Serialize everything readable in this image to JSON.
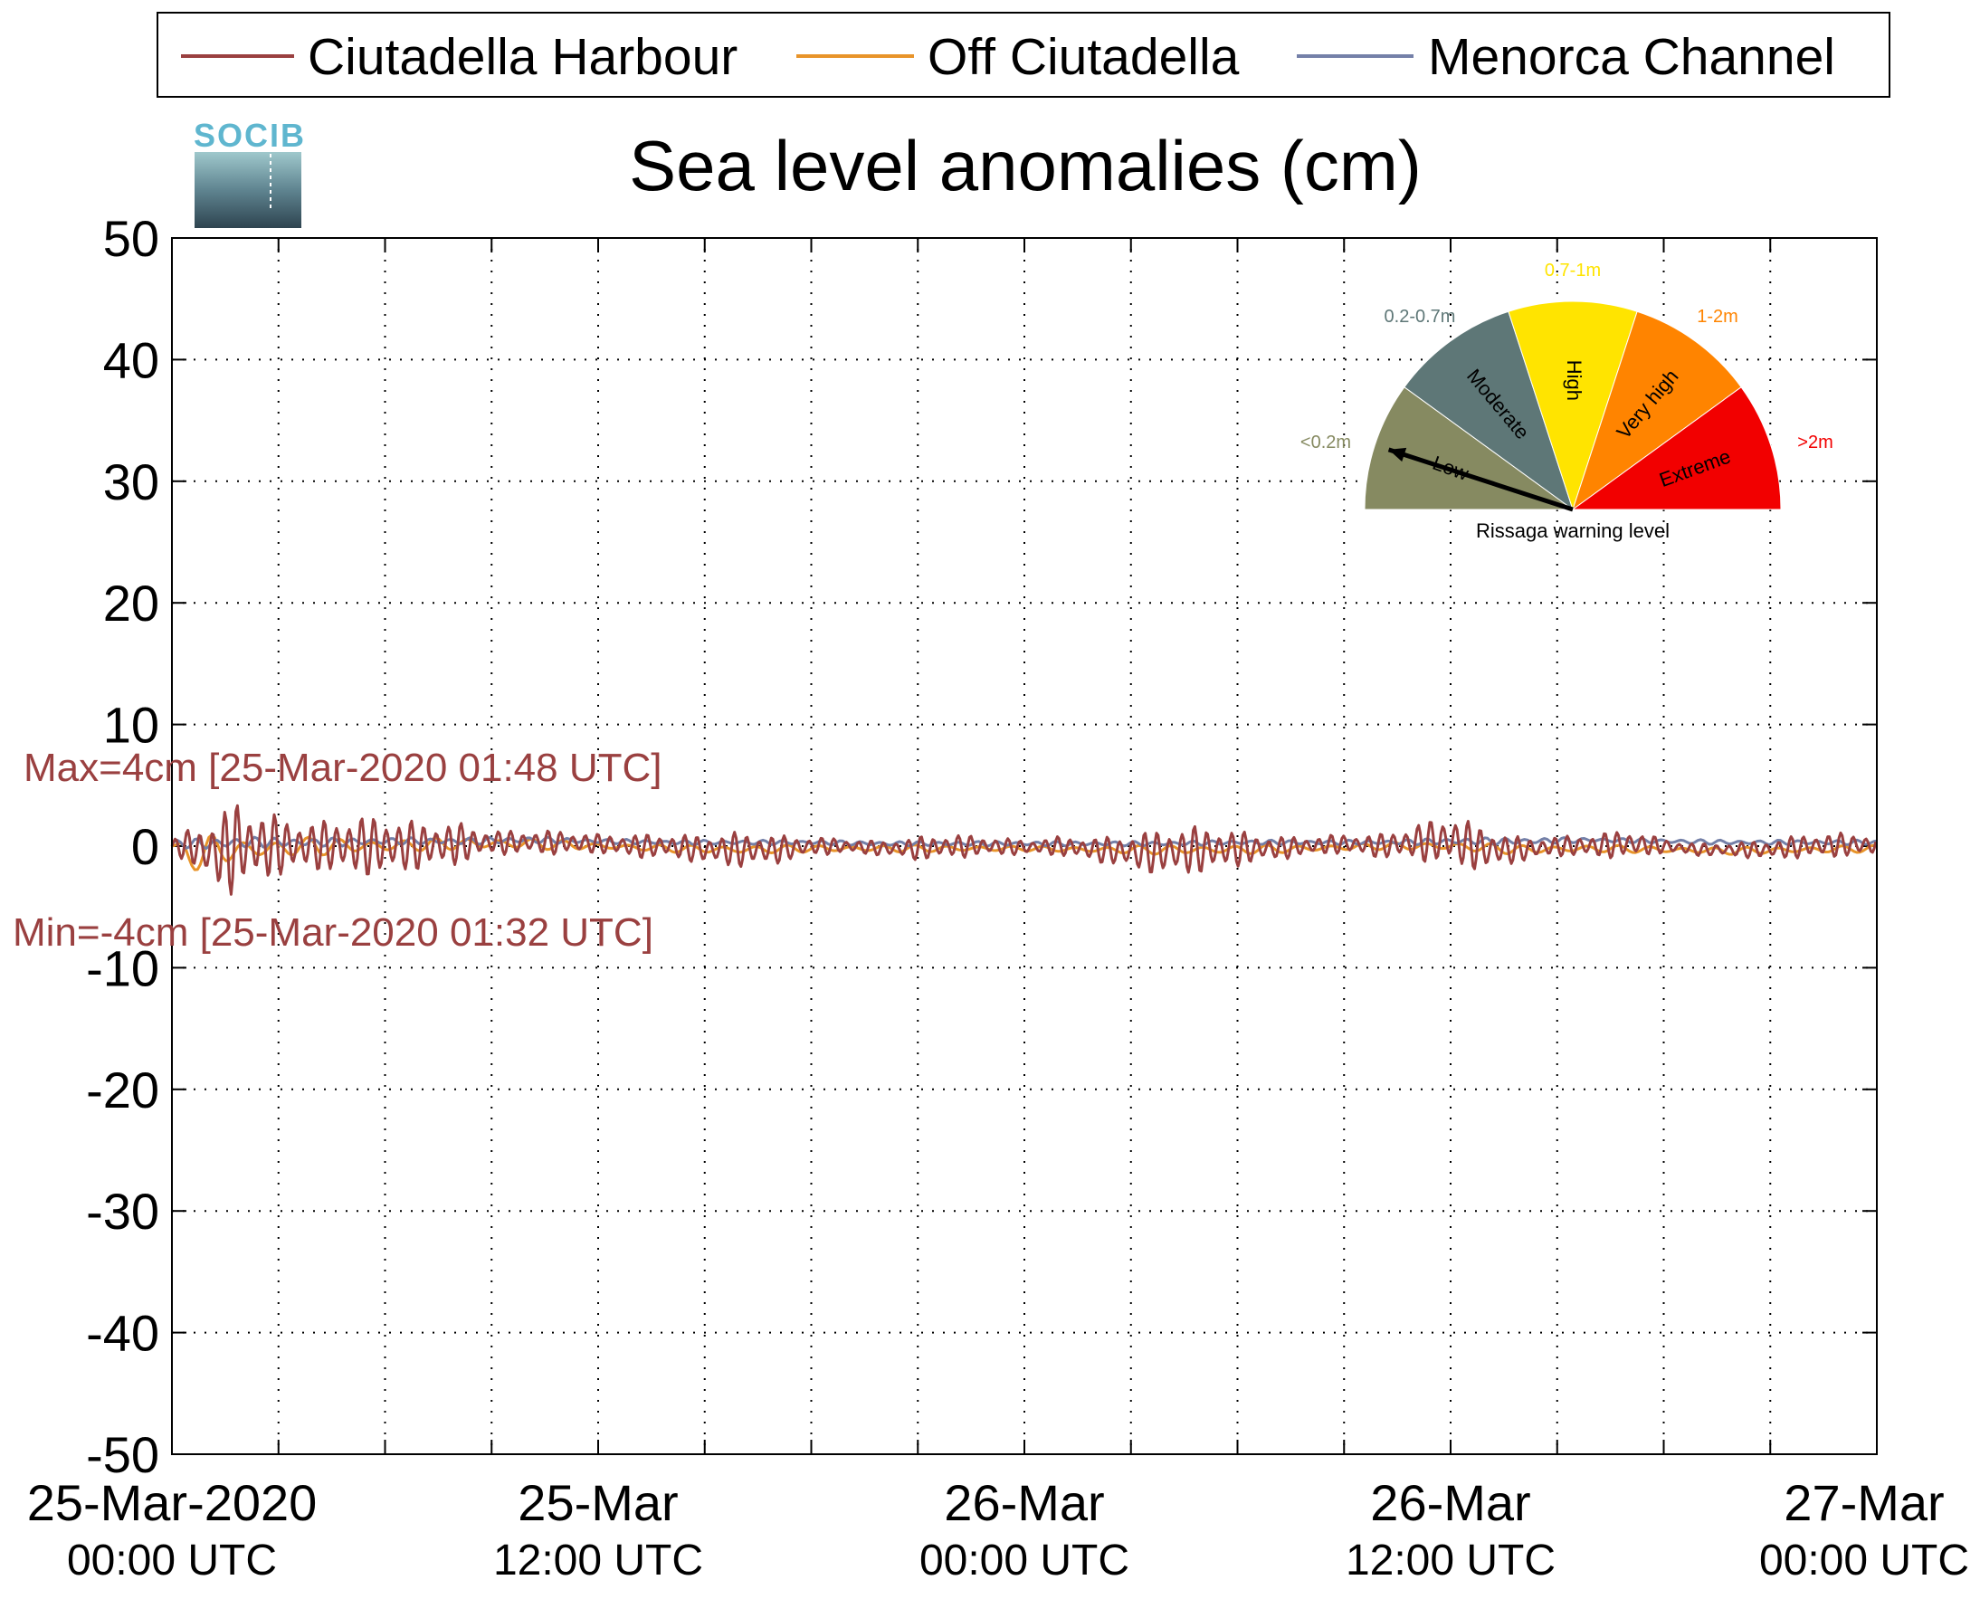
{
  "legend": {
    "items": [
      {
        "label": "Ciutadella Harbour",
        "color": "#9A4040"
      },
      {
        "label": "Off Ciutadella",
        "color": "#E8942A"
      },
      {
        "label": "Menorca Channel",
        "color": "#7480A8"
      }
    ]
  },
  "logo": {
    "text": "SOCIB"
  },
  "gauge": {
    "caption": "Rissaga warning level",
    "needle_level": "Low",
    "levels": [
      {
        "name": "Low",
        "range": "<0.2m",
        "color": "#868A61"
      },
      {
        "name": "Moderate",
        "range": "0.2-0.7m",
        "color": "#5E7777"
      },
      {
        "name": "High",
        "range": "0.7-1m",
        "color": "#FFE400"
      },
      {
        "name": "Very high",
        "range": "1-2m",
        "color": "#FF8400"
      },
      {
        "name": "Extreme",
        "range": ">2m",
        "color": "#F20000"
      }
    ]
  },
  "annotations": {
    "max": "Max=4cm [25-Mar-2020 01:48 UTC]",
    "min": "Min=-4cm [25-Mar-2020 01:32 UTC]",
    "color": "#9A4040"
  },
  "chart_data": {
    "type": "line",
    "title": "Sea level anomalies (cm)",
    "xlabel": "",
    "ylabel": "",
    "ylim": [
      -50,
      50
    ],
    "yticks": [
      -50,
      -40,
      -30,
      -20,
      -10,
      0,
      10,
      20,
      30,
      40,
      50
    ],
    "xlim_hours": [
      0,
      48
    ],
    "x_major_ticks": [
      {
        "hour": 0,
        "date": "25-Mar-2020",
        "time": "00:00 UTC"
      },
      {
        "hour": 12,
        "date": "25-Mar",
        "time": "12:00 UTC"
      },
      {
        "hour": 24,
        "date": "26-Mar",
        "time": "00:00 UTC"
      },
      {
        "hour": 36,
        "date": "26-Mar",
        "time": "12:00 UTC"
      },
      {
        "hour": 48,
        "date": "27-Mar",
        "time": "00:00 UTC"
      }
    ],
    "x_minor_tick_step_hours": 3,
    "grid": true,
    "legend_position": "top",
    "series": [
      {
        "name": "Ciutadella Harbour",
        "color": "#9A4040",
        "hours": [
          0,
          0.5,
          1,
          1.5,
          1.8,
          2,
          2.5,
          3,
          4,
          5,
          6,
          7,
          8,
          9,
          10,
          11,
          12,
          13,
          14,
          15,
          16,
          17,
          18,
          19,
          20,
          21,
          22,
          23,
          24,
          25,
          26,
          27,
          28,
          29,
          30,
          31,
          32,
          33,
          34,
          35,
          36,
          37,
          38,
          39,
          40,
          41,
          42,
          43,
          44,
          45,
          46,
          47,
          48
        ],
        "amplitude": [
          0.5,
          1.5,
          2.5,
          3.5,
          4.0,
          3.5,
          3.0,
          2.5,
          2.0,
          2.5,
          2.5,
          2.0,
          1.8,
          1.0,
          1.0,
          1.0,
          0.8,
          1.0,
          1.0,
          1.2,
          1.5,
          1.2,
          0.8,
          0.6,
          0.6,
          1.0,
          1.0,
          0.8,
          0.6,
          0.8,
          1.0,
          1.5,
          2.0,
          2.0,
          1.5,
          1.0,
          0.8,
          0.8,
          1.0,
          1.5,
          2.2,
          1.8,
          1.0,
          0.8,
          1.0,
          1.2,
          0.6,
          0.5,
          0.6,
          0.8,
          1.0,
          1.0,
          0.9
        ],
        "offset": [
          0,
          0,
          -0.5,
          -0.5,
          0,
          0,
          0,
          0,
          0,
          0,
          0,
          0,
          0.2,
          0.3,
          0.3,
          0.3,
          0.2,
          0,
          0,
          -0.3,
          -0.3,
          -0.3,
          0,
          0,
          -0.2,
          -0.2,
          0,
          0,
          -0.1,
          0,
          -0.3,
          -0.5,
          -0.5,
          -0.3,
          -0.2,
          -0.2,
          0,
          0.2,
          0,
          0.3,
          0.5,
          -0.3,
          -0.3,
          0,
          0,
          0.2,
          0,
          -0.3,
          -0.3,
          -0.3,
          0,
          0.1,
          0.1
        ]
      },
      {
        "name": "Off Ciutadella",
        "color": "#E8942A",
        "hours": [
          0,
          0.5,
          1,
          1.5,
          2,
          3,
          4,
          5,
          6,
          8,
          10,
          12,
          14,
          16,
          18,
          20,
          22,
          24,
          26,
          28,
          30,
          32,
          34,
          36,
          38,
          40,
          42,
          44,
          46,
          48
        ],
        "amplitude": [
          0.3,
          1.2,
          1.5,
          1.2,
          1.0,
          0.8,
          0.8,
          0.6,
          0.6,
          0.5,
          0.5,
          0.3,
          0.3,
          0.4,
          0.3,
          0.3,
          0.3,
          0.2,
          0.3,
          0.4,
          0.4,
          0.3,
          0.3,
          0.4,
          0.4,
          0.3,
          0.3,
          0.3,
          0.3,
          0.3
        ],
        "offset": [
          0,
          -0.8,
          -0.5,
          -0.3,
          -0.3,
          -0.2,
          0,
          0,
          0,
          0.2,
          0.2,
          0,
          -0.2,
          -0.3,
          -0.2,
          -0.2,
          -0.2,
          -0.2,
          -0.3,
          -0.3,
          -0.3,
          -0.2,
          0,
          0,
          -0.3,
          -0.2,
          -0.3,
          -0.4,
          -0.3,
          -0.2
        ]
      },
      {
        "name": "Menorca Channel",
        "color": "#7480A8",
        "hours": [
          0,
          1,
          2,
          3,
          4,
          6,
          8,
          10,
          12,
          14,
          16,
          18,
          20,
          22,
          24,
          26,
          28,
          30,
          32,
          34,
          36,
          38,
          40,
          42,
          44,
          46,
          48
        ],
        "amplitude": [
          0.3,
          0.5,
          0.5,
          0.4,
          0.4,
          0.3,
          0.3,
          0.3,
          0.2,
          0.2,
          0.2,
          0.2,
          0.2,
          0.2,
          0.2,
          0.2,
          0.2,
          0.2,
          0.2,
          0.2,
          0.3,
          0.3,
          0.2,
          0.2,
          0.2,
          0.2,
          0.2
        ],
        "offset": [
          0.2,
          0.2,
          0.3,
          0.3,
          0.3,
          0.4,
          0.4,
          0.5,
          0.4,
          0.3,
          0.3,
          0.3,
          0.2,
          0.2,
          0.2,
          0.2,
          0.2,
          0.3,
          0.3,
          0.3,
          0.4,
          0.4,
          0.5,
          0.4,
          0.3,
          0.3,
          0.3
        ]
      }
    ],
    "max": {
      "value": 4,
      "time": "25-Mar-2020 01:48 UTC"
    },
    "min": {
      "value": -4,
      "time": "25-Mar-2020 01:32 UTC"
    }
  }
}
